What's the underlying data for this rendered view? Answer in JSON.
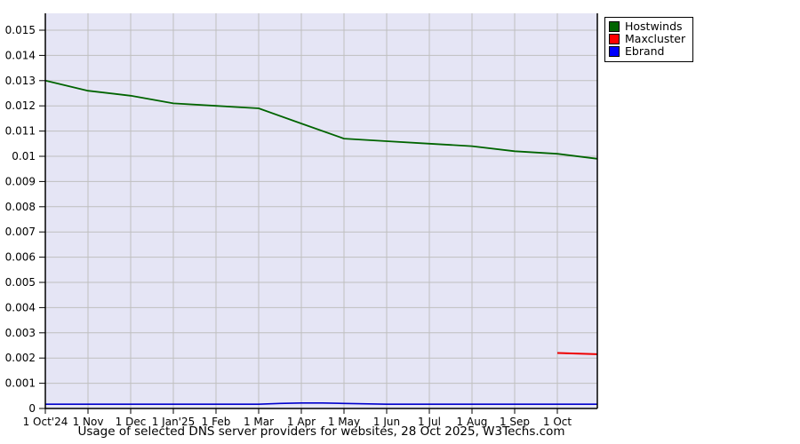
{
  "chart_data": {
    "type": "line",
    "title": "Usage of selected DNS server providers for websites, 28 Oct 2025, W3Techs.com",
    "x_unit": "months since 1 Oct 2024",
    "x_tick_labels": [
      "1 Oct'24",
      "1 Nov",
      "1 Dec",
      "1 Jan'25",
      "1 Feb",
      "1 Mar",
      "1 Apr",
      "1 May",
      "1 Jun",
      "1 Jul",
      "1 Aug",
      "1 Sep",
      "1 Oct"
    ],
    "y_tick_values": [
      0,
      0.001,
      0.002,
      0.003,
      0.004,
      0.005,
      0.006,
      0.007,
      0.008,
      0.009,
      0.01,
      0.011,
      0.012,
      0.013,
      0.014,
      0.015
    ],
    "y_tick_labels": [
      "0",
      "0.001",
      "0.002",
      "0.003",
      "0.004",
      "0.005",
      "0.006",
      "0.007",
      "0.008",
      "0.009",
      "0.01",
      "0.011",
      "0.012",
      "0.013",
      "0.014",
      "0.015"
    ],
    "xlim_months": [
      0,
      12.94
    ],
    "ylim": [
      0,
      0.01567
    ],
    "grid": true,
    "legend_position": "top-right-outside",
    "plot_bg": "#e5e5f5",
    "grid_color": "#bfbfbf",
    "series": [
      {
        "name": "Hostwinds",
        "color": "#006400",
        "swatch": "#006400",
        "width": 1.8,
        "points": [
          [
            0,
            0.013
          ],
          [
            1,
            0.0126
          ],
          [
            2,
            0.0124
          ],
          [
            3,
            0.0121
          ],
          [
            4,
            0.012
          ],
          [
            5,
            0.0119
          ],
          [
            6,
            0.0113
          ],
          [
            7,
            0.0107
          ],
          [
            8,
            0.0106
          ],
          [
            9,
            0.0105
          ],
          [
            10,
            0.0104
          ],
          [
            11,
            0.0102
          ],
          [
            12,
            0.0101
          ],
          [
            12.94,
            0.0099
          ]
        ]
      },
      {
        "name": "Maxcluster",
        "color": "#ee0000",
        "swatch": "#ff0000",
        "width": 2,
        "points": [
          [
            12,
            0.0022
          ],
          [
            12.94,
            0.00215
          ]
        ]
      },
      {
        "name": "Ebrand",
        "color": "#0000cc",
        "swatch": "#0000ff",
        "width": 1.6,
        "points": [
          [
            0,
            0.00017
          ],
          [
            1,
            0.00017
          ],
          [
            2,
            0.00017
          ],
          [
            3,
            0.00017
          ],
          [
            4,
            0.00017
          ],
          [
            5,
            0.00017
          ],
          [
            5.5,
            0.0002
          ],
          [
            6,
            0.00022
          ],
          [
            6.5,
            0.00022
          ],
          [
            7,
            0.0002
          ],
          [
            8,
            0.00017
          ],
          [
            9,
            0.00017
          ],
          [
            10,
            0.00017
          ],
          [
            11,
            0.00017
          ],
          [
            12,
            0.00017
          ],
          [
            12.94,
            0.00017
          ]
        ]
      }
    ]
  }
}
